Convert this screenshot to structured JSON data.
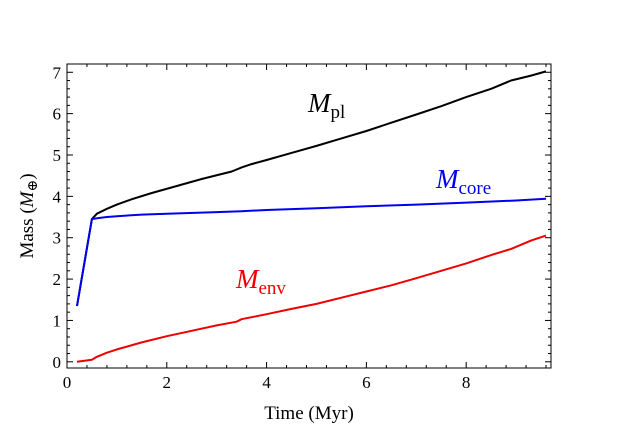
{
  "chart_data": {
    "type": "line",
    "xlabel": "Time (Myr)",
    "ylabel": {
      "prefix": "Mass (",
      "symbol": "M",
      "subscript": "⊕",
      "suffix": ")"
    },
    "xlim": [
      0,
      9.7
    ],
    "ylim": [
      -0.15,
      7.2
    ],
    "x_ticks": [
      0,
      2,
      4,
      6,
      8
    ],
    "y_ticks": [
      0,
      1,
      2,
      3,
      4,
      5,
      6,
      7
    ],
    "grid": false,
    "series": [
      {
        "symbol": "M",
        "subscript": "pl",
        "color": "#000000",
        "x": [
          0.2,
          0.5,
          0.6,
          0.8,
          1.0,
          1.3,
          1.7,
          2.2,
          2.7,
          3.3,
          3.4,
          3.5,
          3.7,
          4.0,
          4.5,
          5.0,
          5.5,
          6.0,
          6.5,
          7.0,
          7.5,
          8.0,
          8.5,
          8.9,
          9.3,
          9.6
        ],
        "y": [
          1.35,
          3.45,
          3.58,
          3.7,
          3.8,
          3.93,
          4.08,
          4.25,
          4.42,
          4.6,
          4.65,
          4.7,
          4.78,
          4.88,
          5.05,
          5.22,
          5.4,
          5.58,
          5.78,
          5.98,
          6.18,
          6.4,
          6.6,
          6.8,
          6.92,
          7.02
        ]
      },
      {
        "symbol": "M",
        "subscript": "core",
        "color": "#0000ee",
        "x": [
          0.2,
          0.5,
          0.6,
          0.8,
          1.0,
          1.5,
          2.0,
          3.0,
          3.5,
          4.0,
          5.0,
          6.0,
          7.0,
          8.0,
          9.0,
          9.6
        ],
        "y": [
          1.35,
          3.45,
          3.47,
          3.5,
          3.52,
          3.56,
          3.58,
          3.62,
          3.64,
          3.67,
          3.71,
          3.76,
          3.8,
          3.85,
          3.9,
          3.94
        ]
      },
      {
        "symbol": "M",
        "subscript": "env",
        "color": "#ee0000",
        "x": [
          0.2,
          0.5,
          0.6,
          0.8,
          1.0,
          1.5,
          2.0,
          2.5,
          3.0,
          3.4,
          3.5,
          4.0,
          4.5,
          5.0,
          5.5,
          6.0,
          6.5,
          7.0,
          7.5,
          8.0,
          8.5,
          8.9,
          9.3,
          9.6
        ],
        "y": [
          0.0,
          0.05,
          0.12,
          0.22,
          0.3,
          0.47,
          0.62,
          0.75,
          0.88,
          0.97,
          1.03,
          1.15,
          1.28,
          1.4,
          1.55,
          1.7,
          1.85,
          2.02,
          2.2,
          2.38,
          2.58,
          2.73,
          2.93,
          3.05
        ]
      }
    ]
  }
}
